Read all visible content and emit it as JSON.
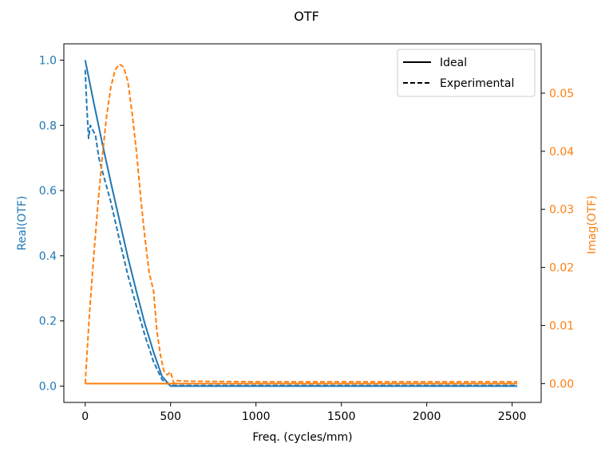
{
  "chart_data": {
    "type": "line",
    "title": "OTF",
    "xlabel": "Freq. (cycles/mm)",
    "ylabel_left": "Real(OTF)",
    "ylabel_right": "Imag(OTF)",
    "xlim": [
      -125,
      2670
    ],
    "ylim_left": [
      -0.05,
      1.05
    ],
    "ylim_right": [
      -0.00325,
      0.0585
    ],
    "x_ticks": [
      0,
      500,
      1000,
      1500,
      2000,
      2500
    ],
    "y_ticks_left": [
      0.0,
      0.2,
      0.4,
      0.6,
      0.8,
      1.0
    ],
    "y_ticks_right": [
      0.0,
      0.01,
      0.02,
      0.03,
      0.04,
      0.05
    ],
    "grid": false,
    "legend": {
      "placement": "top-right",
      "entries": [
        {
          "label": "Ideal",
          "style": "solid"
        },
        {
          "label": "Experimental",
          "style": "dashed"
        }
      ]
    },
    "colors": {
      "real": "#1f77b4",
      "imag": "#ff7f0e"
    },
    "series": [
      {
        "axis": "left",
        "style": "solid",
        "color": "#1f77b4",
        "x": [
          0,
          50,
          100,
          150,
          200,
          250,
          300,
          350,
          400,
          450,
          500,
          550,
          1000,
          1500,
          2000,
          2530
        ],
        "y": [
          1.0,
          0.87,
          0.745,
          0.625,
          0.51,
          0.395,
          0.29,
          0.19,
          0.105,
          0.03,
          0.0,
          0.0,
          0.0,
          0.0,
          0.0,
          0.0
        ]
      },
      {
        "axis": "left",
        "style": "dashed",
        "color": "#1f77b4",
        "x": [
          0,
          10,
          20,
          30,
          40,
          60,
          80,
          100,
          150,
          200,
          250,
          300,
          350,
          400,
          450,
          480,
          500,
          520,
          600,
          1000,
          1500,
          2000,
          2530
        ],
        "y": [
          0.97,
          0.85,
          0.76,
          0.8,
          0.79,
          0.77,
          0.7,
          0.66,
          0.565,
          0.45,
          0.34,
          0.245,
          0.155,
          0.075,
          0.02,
          0.008,
          0.003,
          0.002,
          0.002,
          0.002,
          0.002,
          0.002,
          0.002
        ]
      },
      {
        "axis": "right",
        "style": "solid",
        "color": "#ff7f0e",
        "x": [
          0,
          500,
          1000,
          1500,
          2000,
          2530
        ],
        "y": [
          0.0,
          0.0,
          0.0,
          0.0,
          0.0,
          0.0
        ]
      },
      {
        "axis": "right",
        "style": "dashed",
        "color": "#ff7f0e",
        "x": [
          0,
          25,
          50,
          75,
          100,
          125,
          150,
          175,
          200,
          225,
          250,
          275,
          300,
          325,
          350,
          375,
          400,
          420,
          440,
          460,
          480,
          500,
          510,
          520,
          540,
          600,
          1000,
          1500,
          2000,
          2530
        ],
        "y": [
          0.0,
          0.012,
          0.022,
          0.031,
          0.039,
          0.046,
          0.051,
          0.054,
          0.055,
          0.0545,
          0.052,
          0.0465,
          0.04,
          0.032,
          0.025,
          0.019,
          0.016,
          0.009,
          0.005,
          0.0022,
          0.0015,
          0.002,
          0.001,
          0.0,
          0.0005,
          0.0004,
          0.0003,
          0.0003,
          0.0003,
          0.0003
        ]
      }
    ]
  }
}
